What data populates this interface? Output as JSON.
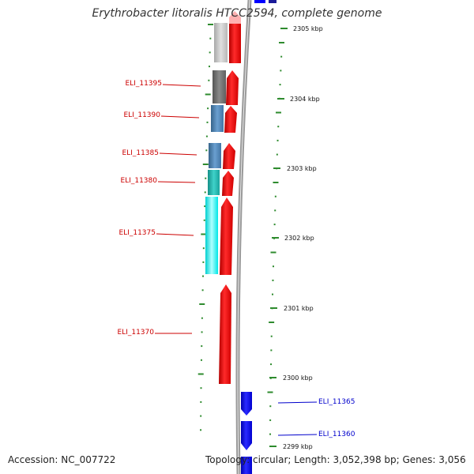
{
  "header": {
    "title": "Erythrobacter litoralis HTCC2594, complete genome"
  },
  "footer": {
    "accession": "Accession: NC_007722",
    "topology": "Topology: circular; Length: 3,052,398 bp; Genes: 3,056"
  },
  "scale": {
    "ticks": [
      {
        "label": "2305 kbp"
      },
      {
        "label": "2304 kbp"
      },
      {
        "label": "2303 kbp"
      },
      {
        "label": "2302 kbp"
      },
      {
        "label": "2301 kbp"
      },
      {
        "label": "2300 kbp"
      },
      {
        "label": "2299 kbp"
      }
    ]
  },
  "genes": [
    {
      "label": "ELI_11395",
      "strand": "minus",
      "color": "#cc0000"
    },
    {
      "label": "ELI_11390",
      "strand": "minus",
      "color": "#cc0000"
    },
    {
      "label": "ELI_11385",
      "strand": "minus",
      "color": "#cc0000"
    },
    {
      "label": "ELI_11380",
      "strand": "minus",
      "color": "#cc0000"
    },
    {
      "label": "ELI_11375",
      "strand": "minus",
      "color": "#cc0000"
    },
    {
      "label": "ELI_11370",
      "strand": "minus",
      "color": "#cc0000"
    },
    {
      "label": "ELI_11365",
      "strand": "plus",
      "color": "#0000cc"
    },
    {
      "label": "ELI_11360",
      "strand": "plus",
      "color": "#0000cc"
    }
  ],
  "colors": {
    "minus_strand": "#ff0000",
    "plus_strand": "#0000ff",
    "backbone": "#8a8a8a",
    "tick": "#2e8b2e",
    "cog_gray_light": "#c8c8c8",
    "cog_gray_dark": "#6e6e6e",
    "cog_steelblue": "#4682b4",
    "cog_teal": "#20b2aa",
    "cog_cyan": "#00ffff"
  }
}
